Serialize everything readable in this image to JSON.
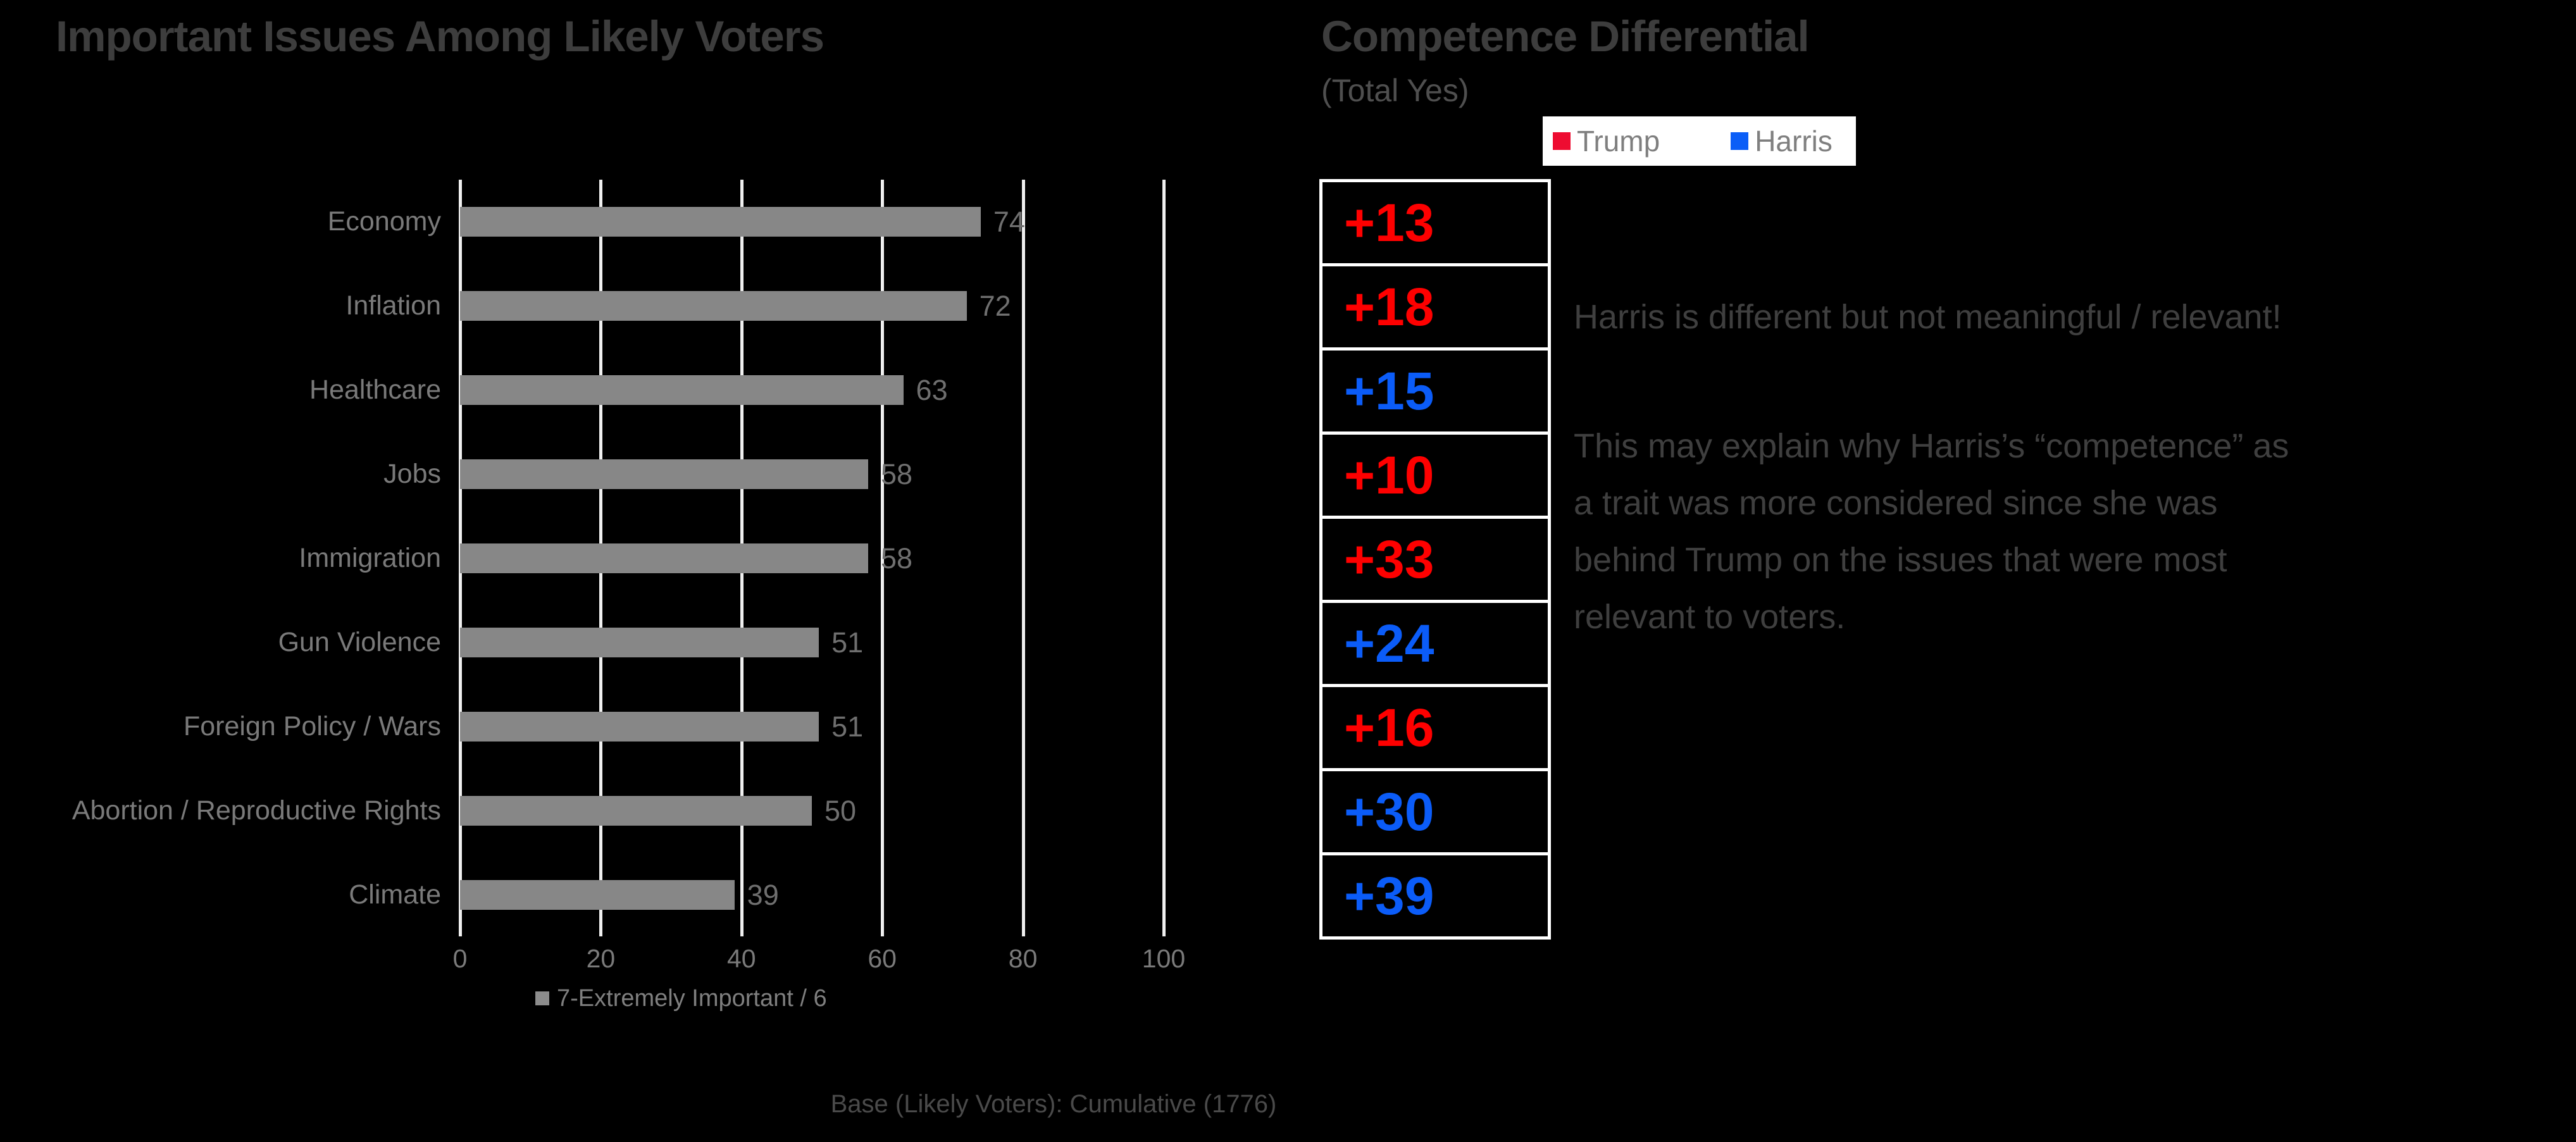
{
  "slide": {
    "background": "#000000"
  },
  "chart_data": [
    {
      "type": "bar",
      "orientation": "horizontal",
      "title": "Important Issues Among Likely Voters",
      "categories": [
        "Economy",
        "Inflation",
        "Healthcare",
        "Jobs",
        "Immigration",
        "Gun Violence",
        "Foreign Policy / Wars",
        "Abortion / Reproductive Rights",
        "Climate"
      ],
      "values": [
        74,
        72,
        63,
        58,
        58,
        51,
        51,
        50,
        39
      ],
      "series_label": "7-Extremely Important / 6",
      "xlim": [
        0,
        100
      ],
      "x_ticks": [
        0,
        20,
        40,
        60,
        80,
        100
      ],
      "gridlines": true,
      "footnote": "Base (Likely Voters): Cumulative (1776)",
      "colors": {
        "bar": "#878787",
        "value_labels": "#6f6f6f",
        "category_labels": "#7a7a7a",
        "tick_labels": "#7a7a7a",
        "gridlines": "#efefef",
        "series_swatch": "#8c8c8c",
        "title": "#3d3d3d",
        "footnote": "#4a4a4a"
      }
    },
    {
      "type": "table",
      "title": "Competence Differential",
      "subtitle": "(Total Yes)",
      "legend": [
        {
          "label": "Trump",
          "color": "#ee0c31"
        },
        {
          "label": "Harris",
          "color": "#0b5ef7"
        }
      ],
      "value_colors": {
        "Trump": "#fe0000",
        "Harris": "#0b5cf8"
      },
      "rows": [
        {
          "value": "+13",
          "party": "Trump"
        },
        {
          "value": "+18",
          "party": "Trump"
        },
        {
          "value": "+15",
          "party": "Harris"
        },
        {
          "value": "+10",
          "party": "Trump"
        },
        {
          "value": "+33",
          "party": "Trump"
        },
        {
          "value": "+24",
          "party": "Harris"
        },
        {
          "value": "+16",
          "party": "Trump"
        },
        {
          "value": "+30",
          "party": "Harris"
        },
        {
          "value": "+39",
          "party": "Harris"
        }
      ],
      "border_color": "#ffffff",
      "cell_background": "#000000"
    }
  ],
  "annotation": {
    "headline": "Harris is different but not meaningful / relevant!",
    "body_lines": [
      "This may explain why Harris’s “competence” as",
      "a trait was more considered since she was",
      "behind Trump on the issues that were most",
      "relevant to voters."
    ]
  }
}
